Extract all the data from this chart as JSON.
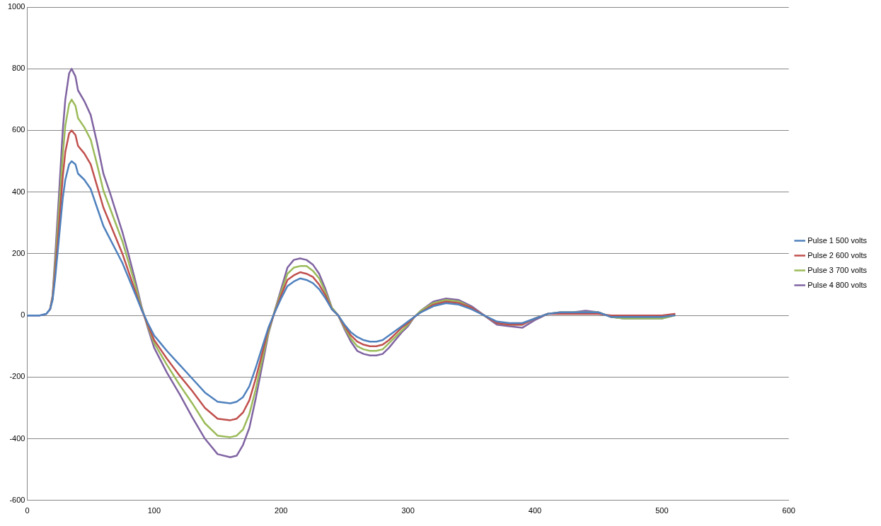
{
  "chart_data": {
    "type": "line",
    "x": [
      0,
      10,
      15,
      18,
      20,
      22,
      25,
      28,
      30,
      33,
      35,
      38,
      40,
      45,
      50,
      55,
      60,
      65,
      70,
      75,
      80,
      85,
      90,
      95,
      100,
      105,
      110,
      120,
      130,
      140,
      150,
      160,
      165,
      170,
      175,
      180,
      185,
      190,
      195,
      200,
      205,
      210,
      215,
      220,
      225,
      230,
      235,
      240,
      245,
      250,
      255,
      260,
      265,
      270,
      275,
      280,
      285,
      290,
      295,
      300,
      305,
      310,
      320,
      330,
      340,
      350,
      360,
      370,
      380,
      390,
      400,
      410,
      420,
      430,
      440,
      450,
      460,
      470,
      480,
      490,
      500,
      510
    ],
    "series": [
      {
        "name": "Pulse 1 500 volts",
        "color": "#4f81bd",
        "values": [
          0,
          0,
          5,
          20,
          50,
          120,
          250,
          380,
          440,
          490,
          500,
          490,
          460,
          440,
          410,
          350,
          290,
          250,
          210,
          170,
          120,
          70,
          20,
          -25,
          -65,
          -90,
          -115,
          -160,
          -205,
          -250,
          -280,
          -285,
          -280,
          -265,
          -230,
          -170,
          -105,
          -40,
          10,
          55,
          95,
          110,
          120,
          115,
          105,
          85,
          55,
          20,
          0,
          -30,
          -55,
          -70,
          -80,
          -85,
          -85,
          -80,
          -65,
          -50,
          -35,
          -20,
          -5,
          10,
          30,
          40,
          35,
          20,
          0,
          -20,
          -25,
          -25,
          -10,
          5,
          10,
          10,
          10,
          10,
          -5,
          -5,
          -5,
          -5,
          -5,
          0
        ]
      },
      {
        "name": "Pulse 2 600 volts",
        "color": "#c0504d",
        "values": [
          null,
          null,
          null,
          20,
          55,
          140,
          290,
          450,
          530,
          590,
          600,
          585,
          550,
          525,
          490,
          420,
          350,
          300,
          250,
          200,
          140,
          80,
          20,
          -30,
          -80,
          -110,
          -140,
          -195,
          -245,
          -300,
          -335,
          -340,
          -335,
          -315,
          -275,
          -205,
          -125,
          -45,
          10,
          65,
          115,
          130,
          140,
          135,
          125,
          100,
          65,
          20,
          0,
          -35,
          -65,
          -85,
          -95,
          -100,
          -100,
          -95,
          -80,
          -60,
          -40,
          -25,
          -5,
          10,
          35,
          45,
          40,
          25,
          0,
          -25,
          -30,
          -30,
          -10,
          5,
          5,
          5,
          5,
          5,
          0,
          0,
          0,
          0,
          0,
          5
        ]
      },
      {
        "name": "Pulse 3 700 volts",
        "color": "#9bbb59",
        "values": [
          null,
          null,
          null,
          20,
          60,
          165,
          340,
          520,
          615,
          685,
          700,
          680,
          640,
          610,
          570,
          490,
          405,
          350,
          295,
          240,
          170,
          100,
          25,
          -35,
          -90,
          -125,
          -160,
          -225,
          -285,
          -350,
          -390,
          -395,
          -390,
          -370,
          -320,
          -240,
          -145,
          -55,
          15,
          75,
          135,
          155,
          160,
          160,
          145,
          120,
          75,
          25,
          0,
          -40,
          -75,
          -100,
          -110,
          -115,
          -115,
          -110,
          -90,
          -70,
          -50,
          -30,
          -5,
          15,
          40,
          50,
          45,
          25,
          0,
          -25,
          -30,
          -30,
          -10,
          5,
          10,
          10,
          10,
          10,
          -5,
          -10,
          -10,
          -10,
          -10,
          0
        ]
      },
      {
        "name": "Pulse 4 800 volts",
        "color": "#8064a2",
        "values": [
          0,
          0,
          5,
          20,
          65,
          190,
          390,
          600,
          700,
          785,
          800,
          775,
          730,
          695,
          650,
          560,
          460,
          400,
          335,
          270,
          195,
          115,
          30,
          -40,
          -105,
          -145,
          -185,
          -255,
          -330,
          -400,
          -450,
          -460,
          -455,
          -420,
          -365,
          -270,
          -165,
          -60,
          15,
          85,
          155,
          180,
          185,
          180,
          165,
          135,
          85,
          25,
          0,
          -45,
          -85,
          -115,
          -125,
          -130,
          -130,
          -125,
          -105,
          -80,
          -55,
          -35,
          -5,
          15,
          45,
          55,
          50,
          30,
          0,
          -30,
          -35,
          -40,
          -15,
          5,
          10,
          10,
          15,
          10,
          -5,
          -10,
          -10,
          -10,
          -10,
          0
        ]
      }
    ],
    "xlim": [
      0,
      600
    ],
    "xticks": [
      0,
      100,
      200,
      300,
      400,
      500,
      600
    ],
    "ylim": [
      -600,
      1000
    ],
    "yticks": [
      -600,
      -400,
      -200,
      0,
      200,
      400,
      600,
      800,
      1000
    ],
    "grid": "y",
    "legend": "right",
    "marker": "none",
    "line_style": "solid"
  }
}
